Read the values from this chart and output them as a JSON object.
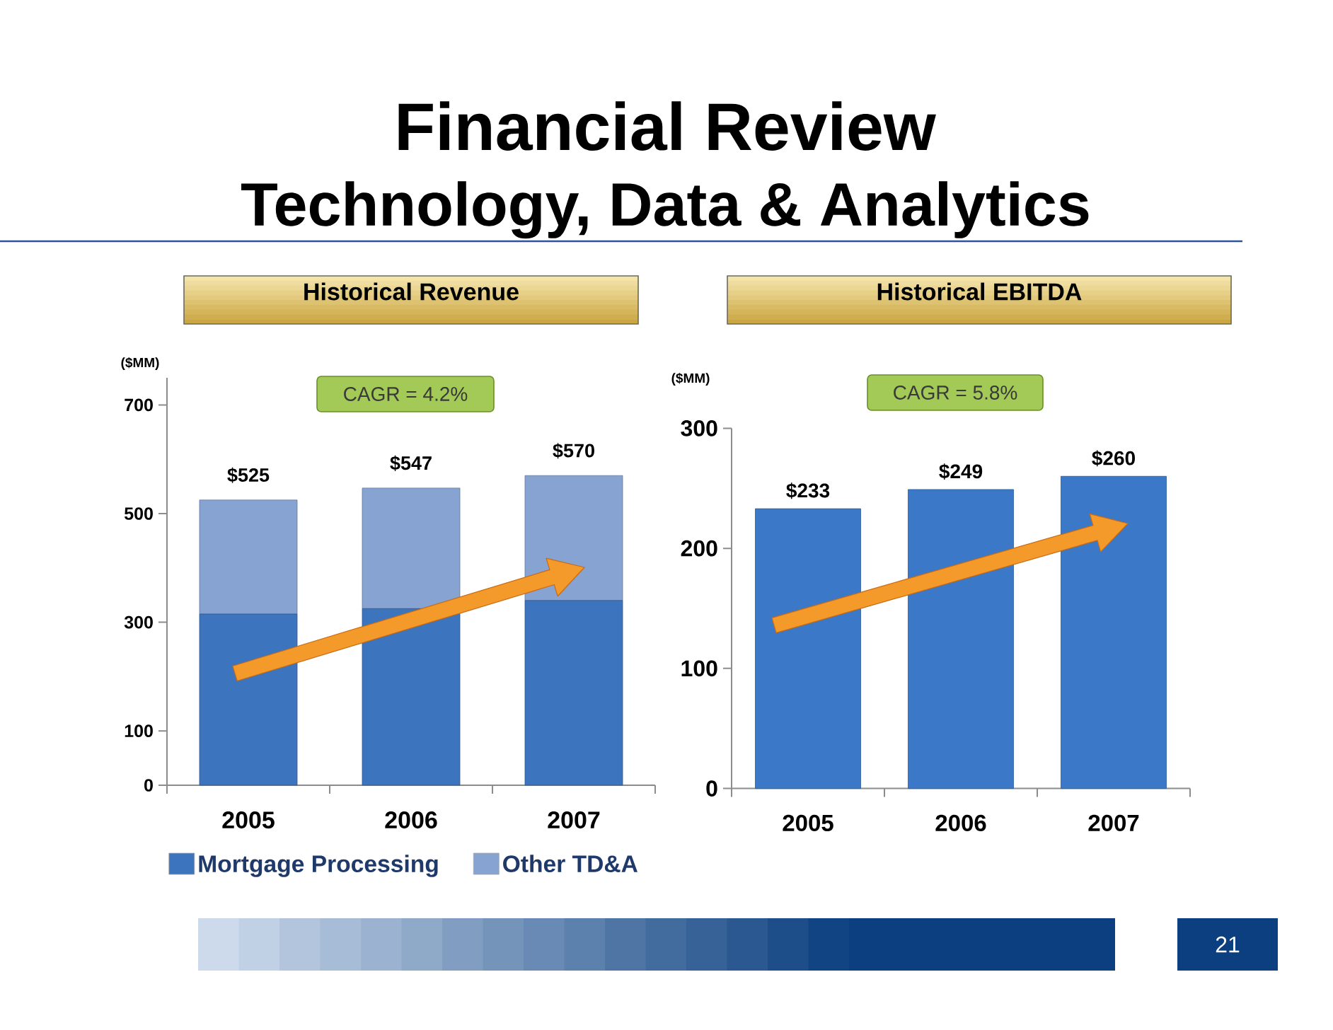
{
  "chart_data": [
    {
      "type": "bar",
      "title": "Historical Revenue",
      "ylabel": "($MM)",
      "categories": [
        "2005",
        "2006",
        "2007"
      ],
      "stacked": true,
      "series": [
        {
          "name": "Mortgage Processing",
          "color": "#3d74be",
          "values": [
            315,
            325,
            340
          ]
        },
        {
          "name": "Other TD&A",
          "color": "#87a3d1",
          "values": [
            210,
            222,
            230
          ]
        }
      ],
      "totals": [
        "$525",
        "$547",
        "$570"
      ],
      "ylim": [
        0,
        750
      ],
      "yticks": [
        0,
        100,
        300,
        500,
        700
      ],
      "legend": "bottom",
      "annotations": [
        "Financial Review",
        "Technology, Data & Analytics",
        "CAGR = 4.2%"
      ]
    },
    {
      "type": "bar",
      "title": "Historical EBITDA",
      "ylabel": "($MM)",
      "categories": [
        "2005",
        "2006",
        "2007"
      ],
      "values": [
        233,
        249,
        260
      ],
      "color": "#3b78c8",
      "value_labels": [
        "$233",
        "$249",
        "$260"
      ],
      "ylim": [
        0,
        300
      ],
      "yticks": [
        0,
        100,
        200,
        300
      ],
      "annotations": [
        "CAGR = 5.8%",
        "21"
      ]
    }
  ]
}
